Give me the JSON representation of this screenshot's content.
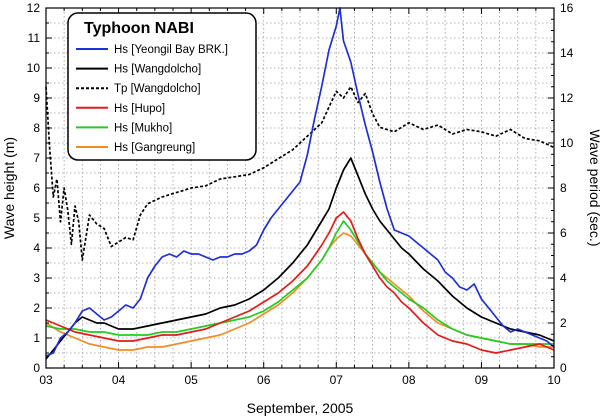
{
  "chart_data": {
    "type": "line",
    "title": "Typhoon NABI",
    "xlabel": "September, 2005",
    "ylabel": "Wave height (m)",
    "y2label": "Wave period (sec.)",
    "xlim": [
      3,
      10
    ],
    "ylim": [
      0,
      12
    ],
    "y2lim": [
      0,
      16
    ],
    "x_ticks": [
      "03",
      "04",
      "05",
      "06",
      "07",
      "08",
      "09",
      "10"
    ],
    "y_ticks": [
      "0",
      "1",
      "2",
      "3",
      "4",
      "5",
      "6",
      "7",
      "8",
      "9",
      "10",
      "11",
      "12"
    ],
    "y2_ticks": [
      "0",
      "2",
      "4",
      "6",
      "8",
      "10",
      "12",
      "14",
      "16"
    ],
    "grid": true,
    "legend_position": "top-left",
    "series": [
      {
        "name": "Hs [Yeongil Bay BRK.]",
        "color": "#1f2fd6",
        "axis": "left",
        "dash": "solid",
        "x": [
          3.0,
          3.1,
          3.2,
          3.3,
          3.4,
          3.5,
          3.6,
          3.7,
          3.8,
          3.9,
          4.0,
          4.1,
          4.2,
          4.3,
          4.4,
          4.5,
          4.6,
          4.7,
          4.8,
          4.9,
          5.0,
          5.1,
          5.2,
          5.3,
          5.4,
          5.5,
          5.6,
          5.7,
          5.8,
          5.9,
          6.0,
          6.1,
          6.2,
          6.3,
          6.4,
          6.5,
          6.6,
          6.7,
          6.8,
          6.9,
          7.0,
          7.05,
          7.1,
          7.2,
          7.3,
          7.4,
          7.5,
          7.6,
          7.7,
          7.8,
          7.9,
          8.0,
          8.1,
          8.2,
          8.3,
          8.4,
          8.5,
          8.6,
          8.7,
          8.8,
          8.9,
          9.0,
          9.1,
          9.2,
          9.3,
          9.4,
          9.5,
          9.6,
          9.7,
          9.8,
          9.9,
          10.0
        ],
        "values": [
          0.4,
          0.5,
          1.0,
          1.2,
          1.5,
          1.9,
          2.0,
          1.8,
          1.6,
          1.7,
          1.9,
          2.1,
          2.0,
          2.3,
          3.0,
          3.4,
          3.7,
          3.8,
          3.7,
          3.9,
          3.8,
          3.8,
          3.7,
          3.6,
          3.7,
          3.7,
          3.8,
          3.8,
          3.9,
          4.1,
          4.6,
          5.0,
          5.3,
          5.6,
          5.9,
          6.2,
          7.1,
          8.3,
          9.4,
          10.6,
          11.4,
          12.0,
          10.9,
          10.2,
          9.1,
          8.1,
          7.2,
          6.2,
          5.3,
          4.6,
          4.5,
          4.4,
          4.2,
          4.0,
          3.8,
          3.6,
          3.2,
          3.0,
          2.7,
          2.6,
          2.8,
          2.3,
          2.0,
          1.7,
          1.4,
          1.2,
          1.3,
          1.2,
          1.1,
          1.0,
          0.9,
          0.7
        ]
      },
      {
        "name": "Hs [Wangdolcho]",
        "color": "#000000",
        "axis": "left",
        "dash": "solid",
        "x": [
          3.0,
          3.1,
          3.2,
          3.3,
          3.4,
          3.5,
          3.6,
          3.7,
          3.8,
          3.9,
          4.0,
          4.2,
          4.4,
          4.6,
          4.8,
          5.0,
          5.2,
          5.4,
          5.6,
          5.8,
          6.0,
          6.2,
          6.4,
          6.6,
          6.8,
          6.9,
          7.0,
          7.1,
          7.2,
          7.3,
          7.4,
          7.5,
          7.6,
          7.7,
          7.8,
          7.9,
          8.0,
          8.2,
          8.4,
          8.6,
          8.8,
          9.0,
          9.2,
          9.4,
          9.6,
          9.8,
          10.0
        ],
        "values": [
          0.3,
          0.6,
          0.9,
          1.2,
          1.5,
          1.7,
          1.6,
          1.5,
          1.5,
          1.4,
          1.3,
          1.3,
          1.4,
          1.5,
          1.6,
          1.7,
          1.8,
          2.0,
          2.1,
          2.3,
          2.6,
          3.0,
          3.5,
          4.1,
          4.9,
          5.3,
          6.0,
          6.6,
          7.0,
          6.4,
          5.8,
          5.3,
          4.9,
          4.6,
          4.3,
          4.0,
          3.8,
          3.3,
          2.9,
          2.4,
          2.0,
          1.7,
          1.5,
          1.3,
          1.2,
          1.1,
          0.9
        ]
      },
      {
        "name": "Tp [Wangdolcho]",
        "color": "#000000",
        "axis": "right",
        "dash": "dotted",
        "x": [
          3.0,
          3.05,
          3.1,
          3.15,
          3.2,
          3.25,
          3.3,
          3.35,
          3.4,
          3.45,
          3.5,
          3.6,
          3.7,
          3.8,
          3.9,
          4.0,
          4.1,
          4.2,
          4.3,
          4.4,
          4.6,
          4.8,
          5.0,
          5.2,
          5.4,
          5.6,
          5.8,
          6.0,
          6.2,
          6.4,
          6.6,
          6.8,
          6.9,
          7.0,
          7.1,
          7.2,
          7.3,
          7.4,
          7.5,
          7.6,
          7.8,
          8.0,
          8.2,
          8.4,
          8.6,
          8.8,
          9.0,
          9.2,
          9.4,
          9.6,
          9.8,
          10.0
        ],
        "values": [
          12.5,
          9.8,
          7.6,
          8.4,
          6.5,
          8.0,
          7.0,
          5.5,
          7.2,
          6.5,
          4.8,
          6.8,
          6.4,
          6.2,
          5.4,
          5.6,
          5.8,
          5.7,
          6.8,
          7.3,
          7.6,
          7.8,
          8.0,
          8.1,
          8.4,
          8.5,
          8.6,
          8.9,
          9.3,
          9.7,
          10.3,
          10.9,
          11.6,
          12.3,
          12.0,
          12.5,
          11.8,
          12.2,
          11.3,
          10.7,
          10.5,
          10.9,
          10.6,
          10.8,
          10.4,
          10.6,
          10.5,
          10.3,
          10.6,
          10.2,
          10.1,
          9.8
        ]
      },
      {
        "name": "Hs [Hupo]",
        "color": "#e21b1b",
        "axis": "left",
        "dash": "solid",
        "x": [
          3.0,
          3.2,
          3.4,
          3.6,
          3.8,
          4.0,
          4.2,
          4.4,
          4.6,
          4.8,
          5.0,
          5.2,
          5.4,
          5.6,
          5.8,
          6.0,
          6.2,
          6.4,
          6.6,
          6.8,
          6.9,
          7.0,
          7.1,
          7.2,
          7.3,
          7.4,
          7.5,
          7.6,
          7.7,
          7.8,
          7.9,
          8.0,
          8.2,
          8.4,
          8.6,
          8.8,
          9.0,
          9.2,
          9.4,
          9.6,
          9.8,
          10.0
        ],
        "values": [
          1.6,
          1.4,
          1.2,
          1.1,
          1.0,
          0.9,
          0.9,
          1.0,
          1.1,
          1.1,
          1.2,
          1.3,
          1.5,
          1.7,
          1.9,
          2.2,
          2.5,
          2.9,
          3.4,
          4.1,
          4.5,
          5.0,
          5.2,
          4.9,
          4.3,
          3.8,
          3.4,
          3.0,
          2.7,
          2.5,
          2.2,
          2.0,
          1.5,
          1.1,
          0.9,
          0.8,
          0.6,
          0.5,
          0.6,
          0.7,
          0.8,
          0.6
        ]
      },
      {
        "name": "Hs [Mukho]",
        "color": "#22cc22",
        "axis": "left",
        "dash": "solid",
        "x": [
          3.0,
          3.2,
          3.4,
          3.6,
          3.8,
          4.0,
          4.2,
          4.4,
          4.6,
          4.8,
          5.0,
          5.2,
          5.4,
          5.6,
          5.8,
          6.0,
          6.2,
          6.4,
          6.6,
          6.8,
          6.9,
          7.0,
          7.1,
          7.2,
          7.3,
          7.4,
          7.5,
          7.6,
          7.7,
          7.8,
          8.0,
          8.2,
          8.4,
          8.6,
          8.8,
          9.0,
          9.2,
          9.4,
          9.6,
          9.8,
          10.0
        ],
        "values": [
          1.4,
          1.3,
          1.3,
          1.2,
          1.2,
          1.1,
          1.1,
          1.1,
          1.2,
          1.2,
          1.3,
          1.4,
          1.5,
          1.6,
          1.7,
          1.9,
          2.2,
          2.6,
          3.0,
          3.6,
          4.0,
          4.5,
          4.9,
          4.6,
          4.2,
          3.8,
          3.5,
          3.2,
          2.9,
          2.7,
          2.3,
          2.0,
          1.6,
          1.3,
          1.1,
          1.0,
          0.9,
          0.8,
          0.8,
          0.8,
          0.8
        ]
      },
      {
        "name": "Hs [Gangreung]",
        "color": "#f28c28",
        "axis": "left",
        "dash": "solid",
        "x": [
          3.0,
          3.2,
          3.4,
          3.6,
          3.8,
          4.0,
          4.2,
          4.4,
          4.6,
          4.8,
          5.0,
          5.2,
          5.4,
          5.6,
          5.8,
          6.0,
          6.2,
          6.4,
          6.6,
          6.8,
          6.9,
          7.0,
          7.1,
          7.2,
          7.3,
          7.4,
          7.5,
          7.6,
          7.7,
          7.8,
          8.0,
          8.2,
          8.4,
          8.6,
          8.8,
          9.0,
          9.2,
          9.4,
          9.6,
          9.8,
          10.0
        ],
        "values": [
          1.5,
          1.2,
          1.0,
          0.8,
          0.7,
          0.6,
          0.6,
          0.7,
          0.7,
          0.8,
          0.9,
          1.0,
          1.1,
          1.3,
          1.5,
          1.8,
          2.1,
          2.5,
          3.0,
          3.6,
          4.0,
          4.3,
          4.5,
          4.4,
          4.1,
          3.8,
          3.5,
          3.2,
          3.0,
          2.8,
          2.4,
          1.9,
          1.5,
          1.3,
          1.1,
          1.0,
          0.9,
          0.8,
          0.8,
          0.7,
          0.7
        ]
      }
    ]
  }
}
